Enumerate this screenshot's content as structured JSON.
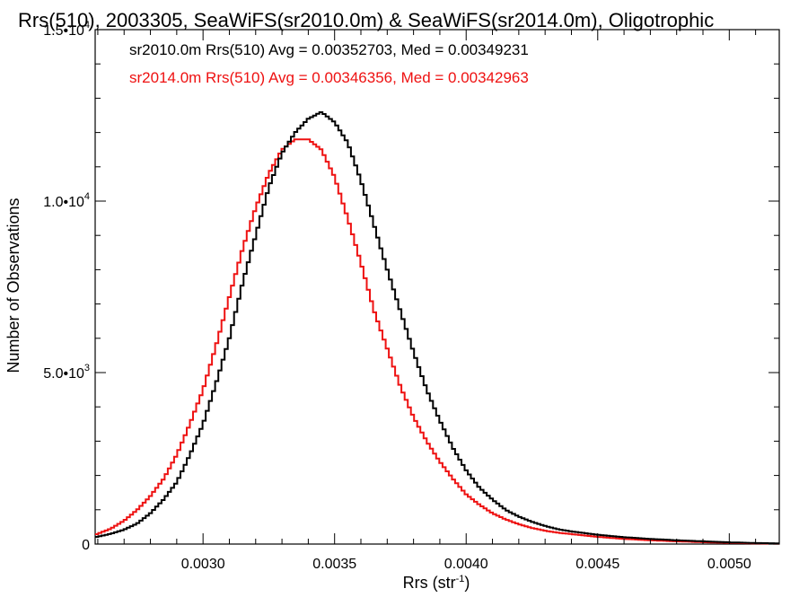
{
  "chart_data": {
    "type": "line",
    "title": "Rrs(510), 2003305, SeaWiFS(sr2010.0m) & SeaWiFS(sr2014.0m), Oligotrophic",
    "xlabel": "Rrs (str",
    "xlabel_sup": "-1",
    "xlabel_suffix": ")",
    "ylabel": "Number of Observations",
    "xlim": [
      0.00259,
      0.00519
    ],
    "ylim": [
      0,
      15000
    ],
    "grid": false,
    "legend_position": "top-left",
    "x_ticks": [
      {
        "value": 0.003,
        "label": "0.0030"
      },
      {
        "value": 0.0035,
        "label": "0.0035"
      },
      {
        "value": 0.004,
        "label": "0.0040"
      },
      {
        "value": 0.0045,
        "label": "0.0045"
      },
      {
        "value": 0.005,
        "label": "0.0050"
      }
    ],
    "y_ticks": [
      {
        "value": 0,
        "base": "0",
        "exp": ""
      },
      {
        "value": 5000,
        "base": "5.0•10",
        "exp": "3"
      },
      {
        "value": 10000,
        "base": "1.0•10",
        "exp": "4"
      },
      {
        "value": 15000,
        "base": "1.5•10",
        "exp": "4"
      }
    ],
    "series": [
      {
        "name": "sr2010.0m Rrs(510) Avg = 0.00352703, Med = 0.00349231",
        "color": "#000000",
        "x": [
          0.00259,
          0.00265,
          0.0027,
          0.00275,
          0.0028,
          0.00285,
          0.0029,
          0.00295,
          0.003,
          0.00305,
          0.0031,
          0.00315,
          0.0032,
          0.00325,
          0.0033,
          0.00335,
          0.0034,
          0.00345,
          0.0035,
          0.00355,
          0.0036,
          0.00365,
          0.0037,
          0.00375,
          0.0038,
          0.00385,
          0.0039,
          0.00395,
          0.004,
          0.00405,
          0.0041,
          0.00415,
          0.0042,
          0.00425,
          0.0043,
          0.00435,
          0.0044,
          0.00445,
          0.0045,
          0.0046,
          0.0047,
          0.0048,
          0.0049,
          0.005,
          0.0051,
          0.00519
        ],
        "y": [
          200,
          300,
          420,
          600,
          900,
          1300,
          1800,
          2600,
          3500,
          4700,
          6000,
          7600,
          9000,
          10400,
          11400,
          12000,
          12400,
          12600,
          12300,
          11700,
          10600,
          9300,
          8000,
          6800,
          5600,
          4500,
          3600,
          2800,
          2150,
          1650,
          1300,
          1000,
          800,
          650,
          530,
          430,
          370,
          320,
          270,
          200,
          150,
          110,
          80,
          50,
          30,
          20
        ]
      },
      {
        "name": "sr2014.0m Rrs(510) Avg = 0.00346356, Med = 0.00342963",
        "color": "#ee1111",
        "x": [
          0.00259,
          0.00265,
          0.0027,
          0.00275,
          0.0028,
          0.00285,
          0.0029,
          0.00295,
          0.003,
          0.00305,
          0.0031,
          0.00315,
          0.0032,
          0.00325,
          0.0033,
          0.00335,
          0.0034,
          0.00345,
          0.0035,
          0.00355,
          0.0036,
          0.00365,
          0.0037,
          0.00375,
          0.0038,
          0.00385,
          0.0039,
          0.00395,
          0.004,
          0.00405,
          0.0041,
          0.00415,
          0.0042,
          0.00425,
          0.0043,
          0.00435,
          0.0044,
          0.00445,
          0.0045,
          0.0046,
          0.0047,
          0.0048,
          0.0049,
          0.005,
          0.0051,
          0.00519
        ],
        "y": [
          270,
          450,
          680,
          1000,
          1400,
          1900,
          2600,
          3500,
          4500,
          5800,
          7200,
          8600,
          9800,
          10800,
          11500,
          11800,
          11800,
          11500,
          10700,
          9500,
          8200,
          6800,
          5700,
          4600,
          3700,
          3000,
          2400,
          1900,
          1450,
          1150,
          900,
          720,
          580,
          470,
          390,
          330,
          290,
          250,
          210,
          150,
          110,
          80,
          55,
          35,
          20,
          10
        ]
      }
    ]
  }
}
